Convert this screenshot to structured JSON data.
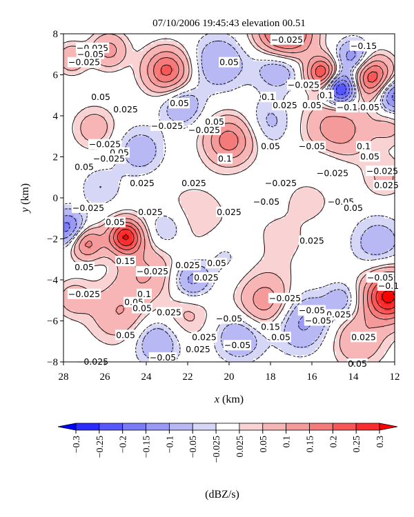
{
  "chart_data": {
    "type": "heatmap",
    "title": "07/10/2006 19:45:43 elevation 00.51",
    "xlabel_var": "x",
    "xlabel_unit": "(km)",
    "ylabel_var": "y",
    "ylabel_unit": "(km)",
    "xlim": [
      28,
      12
    ],
    "ylim": [
      -8,
      8
    ],
    "x_ticks": [
      {
        "value": 28,
        "label": "28"
      },
      {
        "value": 26,
        "label": "26"
      },
      {
        "value": 24,
        "label": "24"
      },
      {
        "value": 22,
        "label": "22"
      },
      {
        "value": 20,
        "label": "20"
      },
      {
        "value": 18,
        "label": "18"
      },
      {
        "value": 16,
        "label": "16"
      },
      {
        "value": 14,
        "label": "14"
      },
      {
        "value": 12,
        "label": "12"
      }
    ],
    "y_ticks": [
      {
        "value": 8,
        "label": "8"
      },
      {
        "value": 6,
        "label": "6"
      },
      {
        "value": 4,
        "label": "4"
      },
      {
        "value": 2,
        "label": "2"
      },
      {
        "value": 0,
        "label": "0"
      },
      {
        "value": -2,
        "label": "−2"
      },
      {
        "value": -4,
        "label": "−4"
      },
      {
        "value": -6,
        "label": "−6"
      },
      {
        "value": -8,
        "label": "−8"
      }
    ],
    "field_features": [
      {
        "x": 17.3,
        "y": 8.0,
        "amp": 0.3,
        "s": 0.9
      },
      {
        "x": 23.0,
        "y": 6.2,
        "amp": 0.22,
        "s": 0.75
      },
      {
        "x": 15.5,
        "y": 6.1,
        "amp": 0.25,
        "s": 0.55
      },
      {
        "x": 13.1,
        "y": 5.9,
        "amp": 0.25,
        "s": 0.7
      },
      {
        "x": 25.8,
        "y": 7.2,
        "amp": 0.12,
        "s": 0.6
      },
      {
        "x": 27.6,
        "y": 6.8,
        "amp": 0.1,
        "s": 0.5
      },
      {
        "x": 20.0,
        "y": 2.8,
        "amp": 0.18,
        "s": 0.8
      },
      {
        "x": 14.8,
        "y": 3.3,
        "amp": 0.14,
        "s": 1.1
      },
      {
        "x": 12.2,
        "y": 3.5,
        "amp": 0.06,
        "s": 0.6
      },
      {
        "x": 25.0,
        "y": -1.9,
        "amp": 0.3,
        "s": 0.6
      },
      {
        "x": 26.9,
        "y": -2.2,
        "amp": 0.18,
        "s": 0.55
      },
      {
        "x": 24.0,
        "y": -3.6,
        "amp": 0.1,
        "s": 0.9
      },
      {
        "x": 12.3,
        "y": -4.8,
        "amp": 0.32,
        "s": 0.85
      },
      {
        "x": 18.2,
        "y": -5.1,
        "amp": 0.14,
        "s": 0.9
      },
      {
        "x": 25.3,
        "y": -5.6,
        "amp": 0.1,
        "s": 1.0
      },
      {
        "x": 27.5,
        "y": -4.9,
        "amp": 0.08,
        "s": 0.6
      },
      {
        "x": 13.8,
        "y": -6.9,
        "amp": 0.1,
        "s": 0.9
      },
      {
        "x": 26.5,
        "y": 3.4,
        "amp": 0.08,
        "s": 0.7
      },
      {
        "x": 21.8,
        "y": -1.0,
        "amp": 0.05,
        "s": 1.2
      },
      {
        "x": 17.5,
        "y": -2.0,
        "amp": 0.03,
        "s": 1.5
      },
      {
        "x": 14.6,
        "y": 5.3,
        "amp": -0.3,
        "s": 0.55
      },
      {
        "x": 12.0,
        "y": 5.0,
        "amp": -0.2,
        "s": 0.6
      },
      {
        "x": 14.0,
        "y": 6.8,
        "amp": -0.15,
        "s": 0.6
      },
      {
        "x": 27.8,
        "y": -1.5,
        "amp": -0.18,
        "s": 0.6
      },
      {
        "x": 17.6,
        "y": 6.5,
        "amp": -0.12,
        "s": 0.8
      },
      {
        "x": 20.5,
        "y": 6.6,
        "amp": -0.1,
        "s": 0.9
      },
      {
        "x": 22.3,
        "y": 4.5,
        "amp": -0.1,
        "s": 0.7
      },
      {
        "x": 24.3,
        "y": 2.3,
        "amp": -0.08,
        "s": 0.8
      },
      {
        "x": 21.8,
        "y": -4.0,
        "amp": -0.12,
        "s": 0.6
      },
      {
        "x": 23.5,
        "y": -7.0,
        "amp": -0.1,
        "s": 0.8
      },
      {
        "x": 16.5,
        "y": -6.0,
        "amp": -0.12,
        "s": 1.0
      },
      {
        "x": 19.5,
        "y": -6.8,
        "amp": -0.1,
        "s": 0.8
      },
      {
        "x": 12.8,
        "y": -2.2,
        "amp": -0.08,
        "s": 0.9
      },
      {
        "x": 15.5,
        "y": 1.5,
        "amp": -0.06,
        "s": 0.9
      },
      {
        "x": 18.0,
        "y": 3.7,
        "amp": -0.06,
        "s": 0.8
      },
      {
        "x": 23.0,
        "y": -1.5,
        "amp": -0.08,
        "s": 0.7
      },
      {
        "x": 26.2,
        "y": 0.5,
        "amp": -0.05,
        "s": 0.7
      },
      {
        "x": 20.2,
        "y": -2.8,
        "amp": -0.04,
        "s": 0.8
      },
      {
        "x": 14.5,
        "y": -5.0,
        "amp": -0.08,
        "s": 0.6
      },
      {
        "x": 22.0,
        "y": -5.8,
        "amp": 0.06,
        "s": 0.8
      },
      {
        "x": 16.0,
        "y": 0.2,
        "amp": 0.05,
        "s": 0.7
      },
      {
        "x": 12.5,
        "y": 1.0,
        "amp": 0.06,
        "s": 0.7
      }
    ],
    "contour_labels": [
      {
        "x": 26.6,
        "y": 7.3,
        "text": "−0.025"
      },
      {
        "x": 26.7,
        "y": 7.0,
        "text": "−0.05"
      },
      {
        "x": 17.2,
        "y": 7.7,
        "text": "−0.025"
      },
      {
        "x": 13.5,
        "y": 7.4,
        "text": "−0.15"
      },
      {
        "x": 27.0,
        "y": 6.6,
        "text": "−0.025"
      },
      {
        "x": 20.0,
        "y": 6.6,
        "text": "0.05"
      },
      {
        "x": 16.4,
        "y": 5.5,
        "text": "−0.025"
      },
      {
        "x": 15.3,
        "y": 5.0,
        "text": "0.1"
      },
      {
        "x": 18.1,
        "y": 4.9,
        "text": "0.1"
      },
      {
        "x": 26.2,
        "y": 4.9,
        "text": "0.05"
      },
      {
        "x": 22.4,
        "y": 4.6,
        "text": "0.05"
      },
      {
        "x": 25.0,
        "y": 4.3,
        "text": "0.025"
      },
      {
        "x": 17.3,
        "y": 4.5,
        "text": "0.025"
      },
      {
        "x": 16.0,
        "y": 4.5,
        "text": "0.05"
      },
      {
        "x": 14.3,
        "y": 4.4,
        "text": "−0.1"
      },
      {
        "x": 13.2,
        "y": 4.4,
        "text": "0.05"
      },
      {
        "x": 23.0,
        "y": 3.5,
        "text": "−0.025"
      },
      {
        "x": 20.7,
        "y": 3.7,
        "text": "0.05"
      },
      {
        "x": 21.2,
        "y": 3.3,
        "text": "−0.025"
      },
      {
        "x": 26.0,
        "y": 2.6,
        "text": "−0.025"
      },
      {
        "x": 25.3,
        "y": 2.2,
        "text": "0.05"
      },
      {
        "x": 18.0,
        "y": 2.5,
        "text": "0.05"
      },
      {
        "x": 16.0,
        "y": 2.5,
        "text": "−0.05"
      },
      {
        "x": 13.5,
        "y": 2.5,
        "text": "0.1"
      },
      {
        "x": 20.2,
        "y": 1.9,
        "text": "0.1"
      },
      {
        "x": 13.2,
        "y": 2.0,
        "text": "0.05"
      },
      {
        "x": 27.0,
        "y": 1.5,
        "text": "0.05"
      },
      {
        "x": 25.8,
        "y": 1.9,
        "text": "−0.025"
      },
      {
        "x": 24.2,
        "y": 0.7,
        "text": "0.025"
      },
      {
        "x": 21.7,
        "y": 0.7,
        "text": "0.025"
      },
      {
        "x": 17.5,
        "y": 0.7,
        "text": "−0.025"
      },
      {
        "x": 15.0,
        "y": 1.2,
        "text": "−0.025"
      },
      {
        "x": 12.6,
        "y": 1.3,
        "text": "−0.025"
      },
      {
        "x": 12.4,
        "y": 0.6,
        "text": "0.025"
      },
      {
        "x": 18.2,
        "y": -0.2,
        "text": "−0.05"
      },
      {
        "x": 14.6,
        "y": -0.2,
        "text": "−0.05"
      },
      {
        "x": 14.0,
        "y": -0.5,
        "text": "0.05"
      },
      {
        "x": 26.8,
        "y": -0.5,
        "text": "−0.025"
      },
      {
        "x": 23.8,
        "y": -0.7,
        "text": "0.025"
      },
      {
        "x": 20.0,
        "y": -0.7,
        "text": "0.025"
      },
      {
        "x": 25.5,
        "y": -1.2,
        "text": "0.05"
      },
      {
        "x": 16.0,
        "y": -2.1,
        "text": "0.025"
      },
      {
        "x": 25.0,
        "y": -3.1,
        "text": "0.15"
      },
      {
        "x": 22.0,
        "y": -3.3,
        "text": "0.025"
      },
      {
        "x": 20.6,
        "y": -3.2,
        "text": "0.05"
      },
      {
        "x": 27.0,
        "y": -3.4,
        "text": "0.05"
      },
      {
        "x": 23.7,
        "y": -3.6,
        "text": "−0.025"
      },
      {
        "x": 21.1,
        "y": -3.9,
        "text": "0.025"
      },
      {
        "x": 12.7,
        "y": -3.9,
        "text": "−0.05"
      },
      {
        "x": 12.3,
        "y": -4.3,
        "text": "−0.1"
      },
      {
        "x": 27.0,
        "y": -4.7,
        "text": "−0.025"
      },
      {
        "x": 24.1,
        "y": -4.7,
        "text": "0.1"
      },
      {
        "x": 17.3,
        "y": -4.9,
        "text": "−0.025"
      },
      {
        "x": 24.6,
        "y": -5.1,
        "text": "0.05"
      },
      {
        "x": 24.2,
        "y": -5.4,
        "text": "0.05"
      },
      {
        "x": 22.9,
        "y": -5.6,
        "text": "0.025"
      },
      {
        "x": 16.0,
        "y": -5.5,
        "text": "−0.05"
      },
      {
        "x": 14.7,
        "y": -5.7,
        "text": "0.025"
      },
      {
        "x": 20.0,
        "y": -5.9,
        "text": "−0.05"
      },
      {
        "x": 15.7,
        "y": -6.0,
        "text": "−0.05"
      },
      {
        "x": 18.0,
        "y": -6.3,
        "text": "0.15"
      },
      {
        "x": 17.5,
        "y": -6.8,
        "text": "0.05"
      },
      {
        "x": 25.0,
        "y": -6.7,
        "text": "0.05"
      },
      {
        "x": 21.2,
        "y": -6.8,
        "text": "0.025"
      },
      {
        "x": 13.5,
        "y": -6.8,
        "text": "0.025"
      },
      {
        "x": 21.5,
        "y": -7.4,
        "text": "0.025"
      },
      {
        "x": 19.6,
        "y": -7.2,
        "text": "−0.05"
      },
      {
        "x": 23.2,
        "y": -7.8,
        "text": "−0.05"
      },
      {
        "x": 26.6,
        "y": -8.0,
        "text": "−0.025"
      },
      {
        "x": 13.8,
        "y": -8.1,
        "text": "0.05"
      }
    ],
    "colorbar": {
      "unit": "(dBZ/s)",
      "levels": [
        {
          "value": -0.3,
          "label": "−0.3"
        },
        {
          "value": -0.25,
          "label": "−0.25"
        },
        {
          "value": -0.2,
          "label": "−0.2"
        },
        {
          "value": -0.15,
          "label": "−0.15"
        },
        {
          "value": -0.1,
          "label": "−0.1"
        },
        {
          "value": -0.05,
          "label": "−0.05"
        },
        {
          "value": -0.025,
          "label": "−0.025"
        },
        {
          "value": 0.025,
          "label": "0.025"
        },
        {
          "value": 0.05,
          "label": "0.05"
        },
        {
          "value": 0.1,
          "label": "0.1"
        },
        {
          "value": 0.15,
          "label": "0.15"
        },
        {
          "value": 0.2,
          "label": "0.2"
        },
        {
          "value": 0.25,
          "label": "0.25"
        },
        {
          "value": 0.3,
          "label": "0.3"
        }
      ],
      "bin_colors": [
        "#0000ff",
        "#2b2bff",
        "#5757ff",
        "#7b7bf7",
        "#9a9af6",
        "#b8b8f5",
        "#d6d6f7",
        "#ffffff",
        "#f9d3d3",
        "#f7b5b5",
        "#f59a9a",
        "#f57b7b",
        "#f75757",
        "#fa2e2e",
        "#ff0000"
      ]
    }
  }
}
